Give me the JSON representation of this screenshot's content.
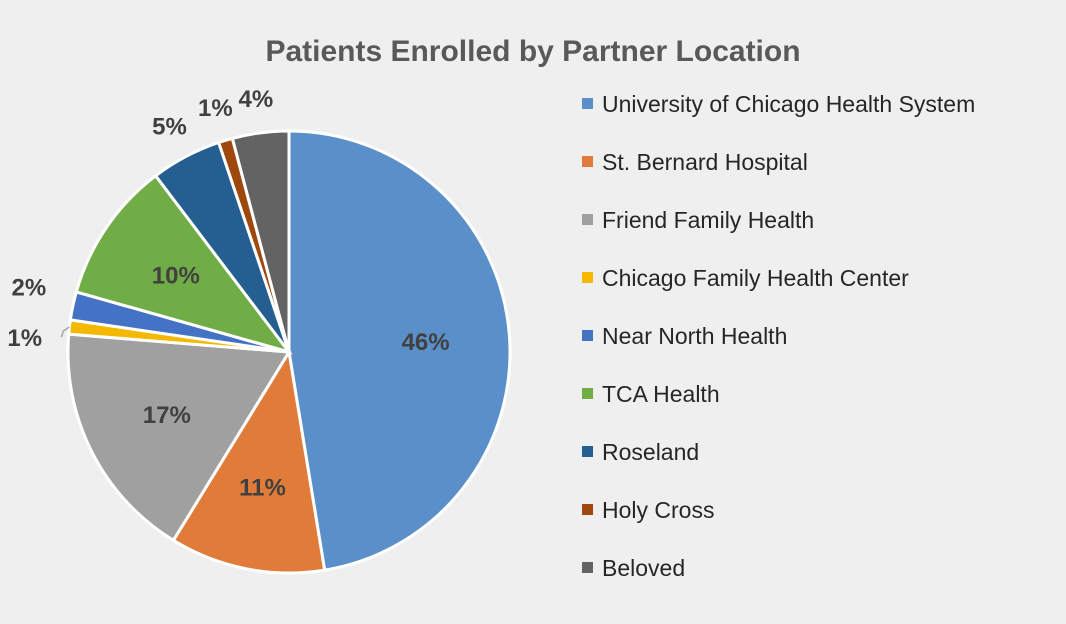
{
  "chart_data": {
    "type": "pie",
    "title": "Patients Enrolled by Partner Location",
    "legend_position": "right",
    "slices": [
      {
        "name": "University of Chicago Health System",
        "value": 46,
        "label": "46%",
        "color": "#5b8fc9"
      },
      {
        "name": "St. Bernard Hospital",
        "value": 11,
        "label": "11%",
        "color": "#e07b39"
      },
      {
        "name": "Friend Family Health",
        "value": 17,
        "label": "17%",
        "color": "#a0a0a0"
      },
      {
        "name": "Chicago Family Health Center",
        "value": 1,
        "label": "1%",
        "color": "#f5b800"
      },
      {
        "name": "Near North Health",
        "value": 2,
        "label": "2%",
        "color": "#4472c4"
      },
      {
        "name": "TCA Health",
        "value": 10,
        "label": "10%",
        "color": "#70ad47"
      },
      {
        "name": "Roseland",
        "value": 5,
        "label": "5%",
        "color": "#255e91"
      },
      {
        "name": "Holy Cross",
        "value": 1,
        "label": "1%",
        "color": "#9e480e"
      },
      {
        "name": "Beloved",
        "value": 4,
        "label": "4%",
        "color": "#636363"
      }
    ]
  }
}
